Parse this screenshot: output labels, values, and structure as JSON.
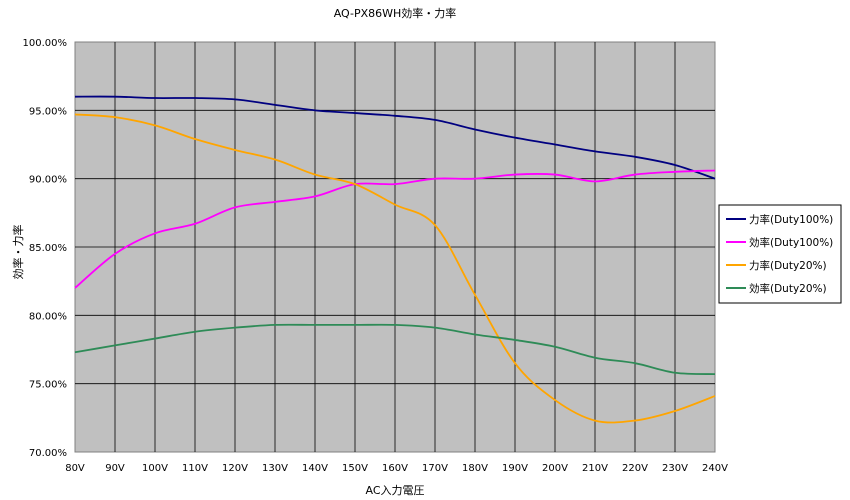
{
  "chart_data": {
    "type": "line",
    "title": "AQ-PX86WH効率・力率",
    "xlabel": "AC入力電圧",
    "ylabel": "効率・力率",
    "categories": [
      "80V",
      "90V",
      "100V",
      "110V",
      "120V",
      "130V",
      "140V",
      "150V",
      "160V",
      "170V",
      "180V",
      "190V",
      "200V",
      "210V",
      "220V",
      "230V",
      "240V"
    ],
    "ylim": [
      70,
      100
    ],
    "yticks": [
      "70.00%",
      "75.00%",
      "80.00%",
      "85.00%",
      "90.00%",
      "95.00%",
      "100.00%"
    ],
    "ytick_values": [
      70,
      75,
      80,
      85,
      90,
      95,
      100
    ],
    "grid": true,
    "legend_position": "right",
    "plot_background": "#c0c0c0",
    "series": [
      {
        "name": "力率(Duty100%)",
        "color": "#000080",
        "values": [
          96.0,
          96.0,
          95.9,
          95.9,
          95.8,
          95.4,
          95.0,
          94.8,
          94.6,
          94.3,
          93.6,
          93.0,
          92.5,
          92.0,
          91.6,
          91.0,
          90.0
        ]
      },
      {
        "name": "効率(Duty100%)",
        "color": "#ff00ff",
        "values": [
          82.0,
          84.5,
          86.0,
          86.7,
          87.9,
          88.3,
          88.7,
          89.6,
          89.6,
          90.0,
          90.0,
          90.3,
          90.3,
          89.8,
          90.3,
          90.5,
          90.6
        ]
      },
      {
        "name": "力率(Duty20%)",
        "color": "#ffa500",
        "values": [
          94.7,
          94.5,
          93.9,
          92.9,
          92.1,
          91.4,
          90.3,
          89.6,
          88.1,
          86.6,
          81.5,
          76.5,
          73.8,
          72.3,
          72.3,
          73.0,
          74.1
        ]
      },
      {
        "name": "効率(Duty20%)",
        "color": "#2e8b57",
        "values": [
          77.3,
          77.8,
          78.3,
          78.8,
          79.1,
          79.3,
          79.3,
          79.3,
          79.3,
          79.1,
          78.6,
          78.2,
          77.7,
          76.9,
          76.5,
          75.8,
          75.7
        ]
      }
    ]
  }
}
